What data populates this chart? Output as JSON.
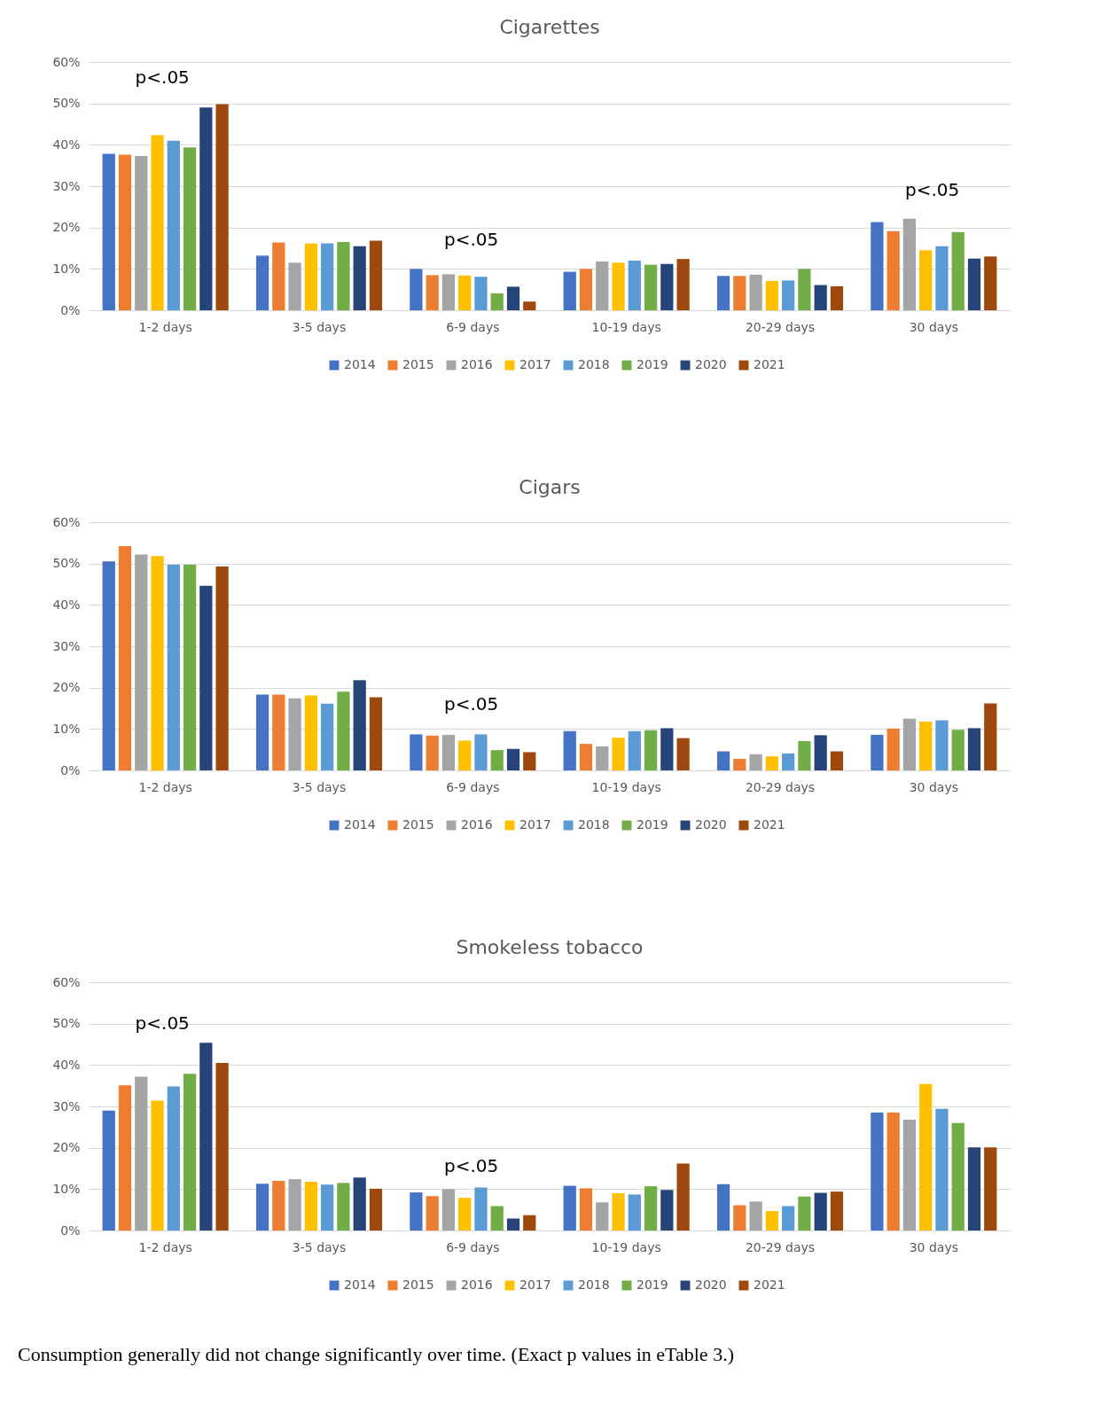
{
  "chart_data": [
    {
      "type": "bar",
      "title": "Cigarettes",
      "categories": [
        "1-2 days",
        "3-5 days",
        "6-9 days",
        "10-19 days",
        "20-29 days",
        "30 days"
      ],
      "series": [
        {
          "name": "2014",
          "color": "#4472c4",
          "values": [
            37.8,
            13.2,
            10.0,
            9.3,
            8.3,
            21.3
          ]
        },
        {
          "name": "2015",
          "color": "#ed7d31",
          "values": [
            37.6,
            16.4,
            8.5,
            10.0,
            8.3,
            19.1
          ]
        },
        {
          "name": "2016",
          "color": "#a5a5a5",
          "values": [
            37.3,
            11.5,
            8.7,
            11.8,
            8.6,
            22.1
          ]
        },
        {
          "name": "2017",
          "color": "#ffc000",
          "values": [
            42.3,
            16.1,
            8.4,
            11.5,
            7.1,
            14.5
          ]
        },
        {
          "name": "2018",
          "color": "#5b9bd5",
          "values": [
            41.0,
            16.2,
            8.1,
            12.0,
            7.2,
            15.5
          ]
        },
        {
          "name": "2019",
          "color": "#70ad47",
          "values": [
            39.4,
            16.5,
            4.1,
            11.0,
            10.0,
            18.9
          ]
        },
        {
          "name": "2020",
          "color": "#264478",
          "values": [
            49.0,
            15.5,
            5.7,
            11.2,
            6.1,
            12.5
          ]
        },
        {
          "name": "2021",
          "color": "#9e480e",
          "values": [
            49.8,
            16.8,
            2.1,
            12.4,
            5.8,
            13.0
          ]
        }
      ],
      "ylim": [
        0,
        60
      ],
      "yticks": [
        {
          "value": 0,
          "label": "0%"
        },
        {
          "value": 10,
          "label": "10%"
        },
        {
          "value": 20,
          "label": "20%"
        },
        {
          "value": 30,
          "label": "30%"
        },
        {
          "value": 40,
          "label": "40%"
        },
        {
          "value": 50,
          "label": "50%"
        },
        {
          "value": 60,
          "label": "60%"
        }
      ],
      "grid": "y",
      "legend": "bottom",
      "annotations": [
        "p<.05",
        "p<.05",
        "p<.05"
      ]
    },
    {
      "type": "bar",
      "title": "Cigars",
      "categories": [
        "1-2 days",
        "3-5 days",
        "6-9 days",
        "10-19 days",
        "20-29 days",
        "30 days"
      ],
      "series": [
        {
          "name": "2014",
          "color": "#4472c4",
          "values": [
            50.5,
            18.3,
            8.7,
            9.5,
            4.6,
            8.6
          ]
        },
        {
          "name": "2015",
          "color": "#ed7d31",
          "values": [
            54.2,
            18.3,
            8.4,
            6.4,
            2.8,
            10.1
          ]
        },
        {
          "name": "2016",
          "color": "#a5a5a5",
          "values": [
            52.2,
            17.4,
            8.6,
            5.8,
            3.9,
            12.5
          ]
        },
        {
          "name": "2017",
          "color": "#ffc000",
          "values": [
            51.8,
            18.1,
            7.2,
            7.9,
            3.4,
            11.8
          ]
        },
        {
          "name": "2018",
          "color": "#5b9bd5",
          "values": [
            49.7,
            16.1,
            8.7,
            9.5,
            4.1,
            12.1
          ]
        },
        {
          "name": "2019",
          "color": "#70ad47",
          "values": [
            49.7,
            19.0,
            4.9,
            9.7,
            7.1,
            9.8
          ]
        },
        {
          "name": "2020",
          "color": "#264478",
          "values": [
            44.6,
            21.8,
            5.2,
            10.2,
            8.5,
            10.2
          ]
        },
        {
          "name": "2021",
          "color": "#9e480e",
          "values": [
            49.3,
            17.7,
            4.4,
            7.8,
            4.6,
            16.2
          ]
        }
      ],
      "ylim": [
        0,
        60
      ],
      "yticks": [
        {
          "value": 0,
          "label": "0%"
        },
        {
          "value": 10,
          "label": "10%"
        },
        {
          "value": 20,
          "label": "20%"
        },
        {
          "value": 30,
          "label": "30%"
        },
        {
          "value": 40,
          "label": "40%"
        },
        {
          "value": 50,
          "label": "50%"
        },
        {
          "value": 60,
          "label": "60%"
        }
      ],
      "grid": "y",
      "legend": "bottom",
      "annotations": [
        "p<.05"
      ]
    },
    {
      "type": "bar",
      "title": "Smokeless tobacco",
      "categories": [
        "1-2 days",
        "3-5 days",
        "6-9 days",
        "10-19 days",
        "20-29 days",
        "30 days"
      ],
      "series": [
        {
          "name": "2014",
          "color": "#4472c4",
          "values": [
            29.0,
            11.3,
            9.2,
            10.8,
            11.2,
            28.5
          ]
        },
        {
          "name": "2015",
          "color": "#ed7d31",
          "values": [
            35.1,
            12.0,
            8.3,
            10.2,
            6.1,
            28.5
          ]
        },
        {
          "name": "2016",
          "color": "#a5a5a5",
          "values": [
            37.2,
            12.4,
            10.0,
            6.8,
            7.0,
            26.8
          ]
        },
        {
          "name": "2017",
          "color": "#ffc000",
          "values": [
            31.4,
            11.8,
            7.9,
            9.0,
            4.7,
            35.4
          ]
        },
        {
          "name": "2018",
          "color": "#5b9bd5",
          "values": [
            34.8,
            11.1,
            10.4,
            8.7,
            5.9,
            29.4
          ]
        },
        {
          "name": "2019",
          "color": "#70ad47",
          "values": [
            37.9,
            11.5,
            5.9,
            10.7,
            8.2,
            26.0
          ]
        },
        {
          "name": "2020",
          "color": "#264478",
          "values": [
            45.4,
            12.8,
            2.9,
            9.8,
            9.1,
            20.1
          ]
        },
        {
          "name": "2021",
          "color": "#9e480e",
          "values": [
            40.5,
            10.1,
            3.7,
            16.2,
            9.4,
            20.1
          ]
        }
      ],
      "ylim": [
        0,
        60
      ],
      "yticks": [
        {
          "value": 0,
          "label": "0%"
        },
        {
          "value": 10,
          "label": "10%"
        },
        {
          "value": 20,
          "label": "20%"
        },
        {
          "value": 30,
          "label": "30%"
        },
        {
          "value": 40,
          "label": "40%"
        },
        {
          "value": 50,
          "label": "50%"
        },
        {
          "value": 60,
          "label": "60%"
        }
      ],
      "grid": "y",
      "legend": "bottom",
      "annotations": [
        "p<.05",
        "p<.05",
        "Consumption generally did not change significantly over time.  (Exact p values in eTable 3.)"
      ]
    }
  ]
}
